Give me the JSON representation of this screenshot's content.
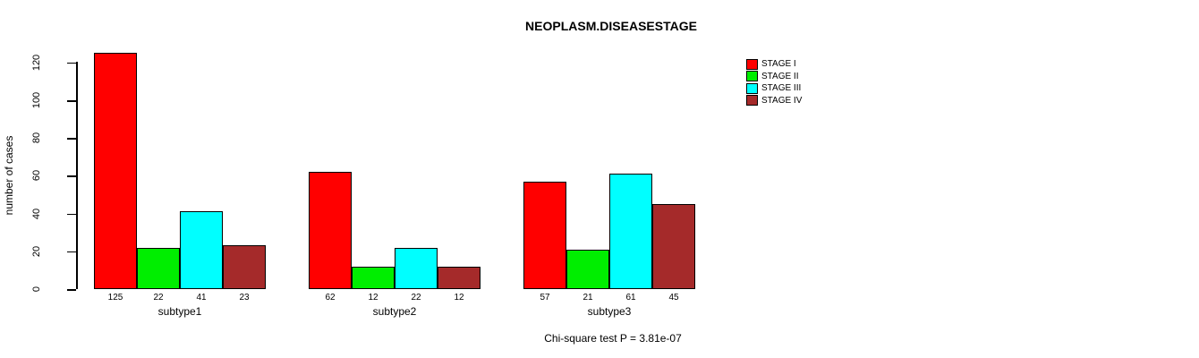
{
  "title": "NEOPLASM.DISEASESTAGE",
  "ylabel": "number of cases",
  "footer": "Chi-square test P = 3.81e-07",
  "chart_data": {
    "type": "bar",
    "grouped": true,
    "categories": [
      "subtype1",
      "subtype2",
      "subtype3"
    ],
    "series": [
      {
        "name": "STAGE I",
        "color": "#FF0000",
        "values": [
          125,
          62,
          57
        ]
      },
      {
        "name": "STAGE II",
        "color": "#00EE00",
        "values": [
          22,
          12,
          21
        ]
      },
      {
        "name": "STAGE III",
        "color": "#00FFFF",
        "values": [
          41,
          22,
          61
        ]
      },
      {
        "name": "STAGE IV",
        "color": "#A52A2A",
        "values": [
          23,
          12,
          45
        ]
      }
    ],
    "bar_value_labels": [
      [
        "125",
        "22",
        "41",
        "23"
      ],
      [
        "62",
        "12",
        "22",
        "12"
      ],
      [
        "57",
        "21",
        "61",
        "45"
      ]
    ],
    "yticks": [
      0,
      20,
      40,
      60,
      80,
      100,
      120
    ],
    "ylim": [
      0,
      125
    ],
    "xlabel": "",
    "grid": false,
    "legend_position": "top-right"
  }
}
